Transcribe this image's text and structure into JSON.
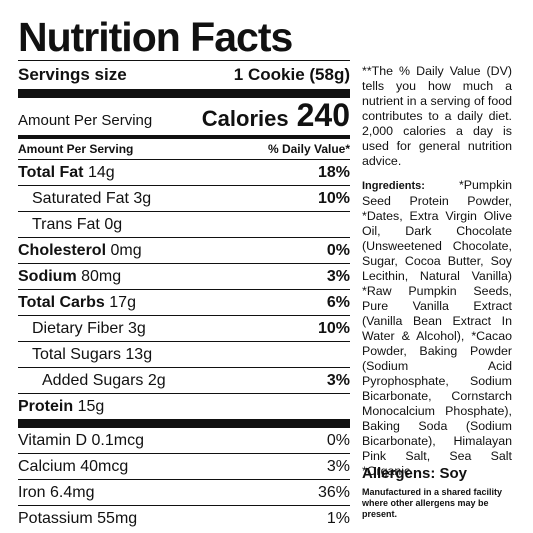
{
  "panel": {
    "title": "Nutrition Facts",
    "servings_label": "Servings size",
    "servings_value": "1 Cookie (58g)",
    "amount_label": "Amount Per Serving",
    "calories_label": "Calories",
    "calories_value": "240",
    "dv_header_left": "Amount Per Serving",
    "dv_header_right": "% Daily Value*",
    "nutrients": [
      {
        "name": "Total Fat",
        "amount": "14g",
        "dv": "18%"
      },
      {
        "name": "Saturated Fat",
        "amount": "3g",
        "dv": "10%"
      },
      {
        "name": "Trans Fat",
        "amount": "0g",
        "dv": ""
      },
      {
        "name": "Cholesterol",
        "amount": "0mg",
        "dv": "0%"
      },
      {
        "name": "Sodium",
        "amount": "80mg",
        "dv": "3%"
      },
      {
        "name": "Total Carbs",
        "amount": "17g",
        "dv": "6%"
      },
      {
        "name": "Dietary Fiber",
        "amount": "3g",
        "dv": "10%"
      },
      {
        "name": "Total Sugars",
        "amount": "13g",
        "dv": ""
      },
      {
        "name": "Added Sugars",
        "amount": "2g",
        "dv": "3%"
      },
      {
        "name": "Protein",
        "amount": "15g",
        "dv": ""
      }
    ],
    "vitamins": [
      {
        "label": "Vitamin D 0.1mcg",
        "dv": "0%"
      },
      {
        "label": "Calcium 40mcg",
        "dv": "3%"
      },
      {
        "label": "Iron 6.4mg",
        "dv": "36%"
      },
      {
        "label": "Potassium 55mg",
        "dv": "1%"
      }
    ]
  },
  "side": {
    "dv_note": "**The % Daily Value (DV) tells you how much a nutrient in a serving of food contributes to a daily diet. 2,000 calories a day is used for general nutrition advice.",
    "ingredients_label": "Ingredients:",
    "ingredients_text": " *Pumpkin Seed Protein Powder, *Dates, Extra Virgin Olive Oil, Dark Chocolate (Unsweetened Chocolate, Sugar, Cocoa Butter, Soy Lecithin, Natural Vanilla) *Raw Pumpkin Seeds, Pure Vanilla Extract (Vanilla Bean Extract In Water & Alcohol), *Cacao Powder, Baking Powder (Sodium Acid Pyrophosphate, Sodium Bicarbonate, Cornstarch Monocalcium Phosphate), Baking Soda (Sodium Bicarbonate), Himalayan Pink Salt, Sea Salt *Organic",
    "allergens": "Allergens: Soy",
    "manufactured": "Manufactured in a shared facility where other allergens may be present."
  }
}
